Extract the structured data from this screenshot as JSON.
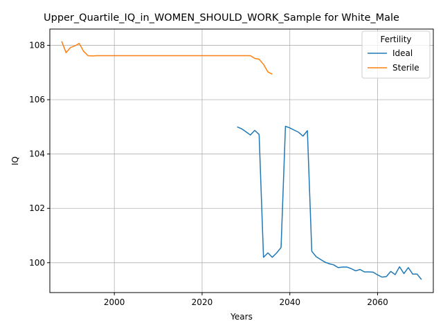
{
  "chart_data": {
    "type": "line",
    "title": "Upper_Quartile_IQ_in_WOMEN_SHOULD_WORK_Sample for White_Male",
    "xlabel": "Years",
    "ylabel": "IQ",
    "xlim": [
      1985.3,
      2072.7
    ],
    "ylim": [
      98.9,
      108.6
    ],
    "xticks": [
      2000,
      2020,
      2040,
      2060
    ],
    "yticks": [
      100,
      102,
      104,
      106,
      108
    ],
    "grid": true,
    "legend": {
      "title": "Fertility",
      "placement": "top-right"
    },
    "series": [
      {
        "name": "Ideal",
        "color": "#1f77b4",
        "x": [
          2028,
          2029,
          2030,
          2031,
          2032,
          2033,
          2034,
          2035,
          2036,
          2037,
          2038,
          2039,
          2040,
          2041,
          2042,
          2043,
          2044,
          2045,
          2046,
          2047,
          2048,
          2049,
          2050,
          2051,
          2052,
          2053,
          2054,
          2055,
          2056,
          2057,
          2058,
          2059,
          2060,
          2061,
          2062,
          2063,
          2064,
          2065,
          2066,
          2067,
          2068,
          2069,
          2070
        ],
        "y": [
          105.0,
          104.93,
          104.82,
          104.7,
          104.87,
          104.72,
          100.2,
          100.36,
          100.2,
          100.36,
          100.56,
          105.02,
          104.96,
          104.88,
          104.8,
          104.66,
          104.86,
          100.42,
          100.22,
          100.12,
          100.02,
          99.96,
          99.92,
          99.82,
          99.84,
          99.84,
          99.78,
          99.7,
          99.75,
          99.66,
          99.66,
          99.65,
          99.55,
          99.47,
          99.49,
          99.68,
          99.56,
          99.85,
          99.6,
          99.82,
          99.58,
          99.58,
          99.38
        ]
      },
      {
        "name": "Sterile",
        "color": "#ff7f0e",
        "x": [
          1988,
          1989,
          1990,
          1991,
          1992,
          1993,
          1994,
          1995,
          1996,
          1997,
          1998,
          1999,
          2000,
          2001,
          2002,
          2003,
          2004,
          2005,
          2006,
          2007,
          2008,
          2009,
          2010,
          2011,
          2012,
          2013,
          2014,
          2015,
          2016,
          2017,
          2018,
          2019,
          2020,
          2021,
          2022,
          2023,
          2024,
          2025,
          2026,
          2027,
          2028,
          2029,
          2030,
          2031,
          2032,
          2033,
          2034,
          2035,
          2036
        ],
        "y": [
          108.15,
          107.73,
          107.92,
          107.98,
          108.07,
          107.78,
          107.62,
          107.61,
          107.62,
          107.62,
          107.62,
          107.62,
          107.62,
          107.62,
          107.62,
          107.62,
          107.62,
          107.62,
          107.62,
          107.62,
          107.62,
          107.62,
          107.62,
          107.62,
          107.62,
          107.62,
          107.62,
          107.62,
          107.62,
          107.62,
          107.62,
          107.62,
          107.62,
          107.62,
          107.62,
          107.62,
          107.62,
          107.62,
          107.62,
          107.62,
          107.62,
          107.62,
          107.62,
          107.62,
          107.52,
          107.49,
          107.3,
          107.02,
          106.94
        ]
      }
    ]
  }
}
